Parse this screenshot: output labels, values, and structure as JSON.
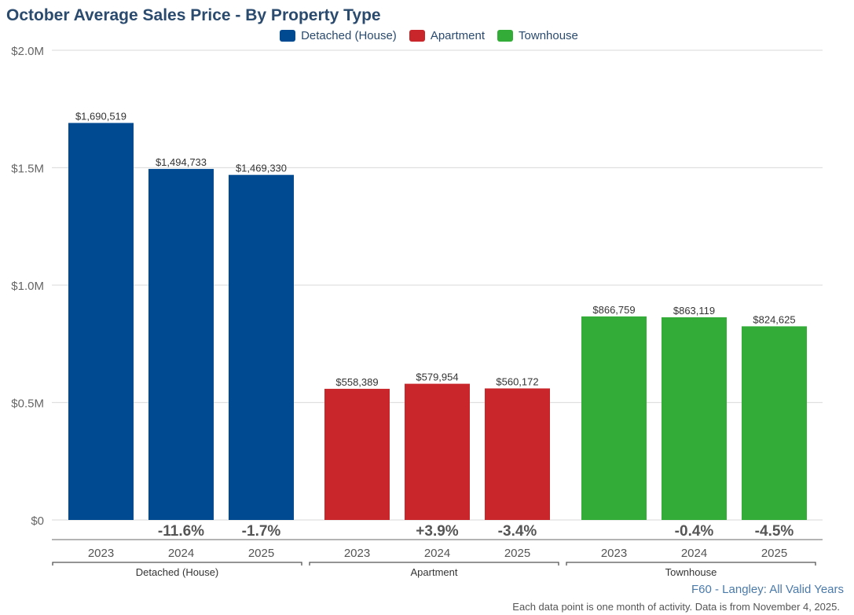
{
  "chart_data": {
    "type": "bar",
    "title": "October Average Sales Price - By Property Type",
    "xlabel": "",
    "ylabel": "",
    "ylim": [
      0,
      2000000
    ],
    "yticks": [
      {
        "value": 0,
        "label": "$0"
      },
      {
        "value": 500000,
        "label": "$0.5M"
      },
      {
        "value": 1000000,
        "label": "$1.0M"
      },
      {
        "value": 1500000,
        "label": "$1.5M"
      },
      {
        "value": 2000000,
        "label": "$2.0M"
      }
    ],
    "grid": true,
    "legend_position": "top-center",
    "groups": [
      {
        "name": "Detached (House)",
        "color": "#004a91",
        "categories": [
          "2023",
          "2024",
          "2025"
        ],
        "values": [
          1690519,
          1494733,
          1469330
        ],
        "value_labels": [
          "$1,690,519",
          "$1,494,733",
          "$1,469,330"
        ],
        "changes": [
          "",
          "-11.6%",
          "-1.7%"
        ]
      },
      {
        "name": "Apartment",
        "color": "#c8262a",
        "categories": [
          "2023",
          "2024",
          "2025"
        ],
        "values": [
          558389,
          579954,
          560172
        ],
        "value_labels": [
          "$558,389",
          "$579,954",
          "$560,172"
        ],
        "changes": [
          "",
          "+3.9%",
          "-3.4%"
        ]
      },
      {
        "name": "Townhouse",
        "color": "#33ad38",
        "categories": [
          "2023",
          "2024",
          "2025"
        ],
        "values": [
          866759,
          863119,
          824625
        ],
        "value_labels": [
          "$866,759",
          "$863,119",
          "$824,625"
        ],
        "changes": [
          "",
          "-0.4%",
          "-4.5%"
        ]
      }
    ]
  },
  "legend": [
    {
      "label": "Detached (House)",
      "color": "#004a91"
    },
    {
      "label": "Apartment",
      "color": "#c8262a"
    },
    {
      "label": "Townhouse",
      "color": "#33ad38"
    }
  ],
  "subtitle": "F60 - Langley: All Valid Years",
  "footnote": "Each data point is one month of activity. Data is from November 4, 2025."
}
